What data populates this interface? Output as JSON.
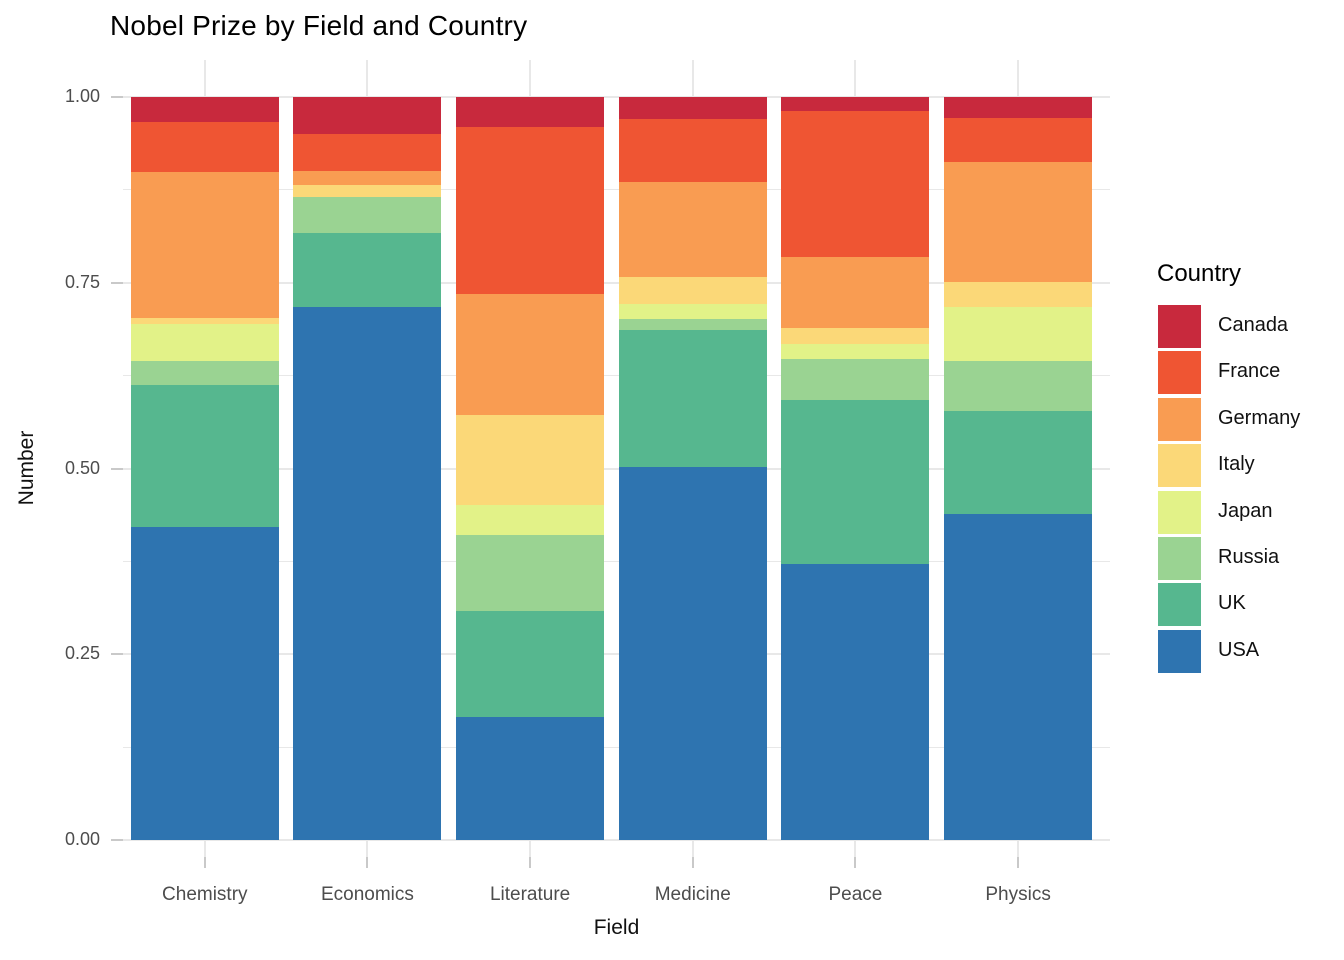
{
  "chart_data": {
    "type": "bar",
    "variant": "stacked-normalized",
    "title": "Nobel Prize by Field and Country",
    "xlabel": "Field",
    "ylabel": "Number",
    "ylim": [
      0,
      1
    ],
    "grid": true,
    "legend_position": "right",
    "legend_title": "Country",
    "y_major_ticks": [
      0,
      0.25,
      0.5,
      0.75,
      1
    ],
    "y_tick_labels": [
      "0.00",
      "0.25",
      "0.50",
      "0.75",
      "1.00"
    ],
    "y_minor_gridlines": [
      0.125,
      0.375,
      0.625,
      0.875
    ],
    "categories": [
      "Chemistry",
      "Economics",
      "Literature",
      "Medicine",
      "Peace",
      "Physics"
    ],
    "stack_order_bottom_to_top": [
      "USA",
      "UK",
      "Russia",
      "Japan",
      "Italy",
      "Germany",
      "France",
      "Canada"
    ],
    "series": [
      {
        "name": "Canada",
        "color": "#c8293d",
        "values": [
          0.033,
          0.05,
          0.04,
          0.029,
          0.019,
          0.028
        ]
      },
      {
        "name": "France",
        "color": "#ef5533",
        "values": [
          0.068,
          0.049,
          0.225,
          0.085,
          0.196,
          0.06
        ]
      },
      {
        "name": "Germany",
        "color": "#f99c52",
        "values": [
          0.197,
          0.019,
          0.163,
          0.128,
          0.096,
          0.161
        ]
      },
      {
        "name": "Italy",
        "color": "#fbd878",
        "values": [
          0.008,
          0.017,
          0.121,
          0.036,
          0.021,
          0.034
        ]
      },
      {
        "name": "Japan",
        "color": "#e2f288",
        "values": [
          0.049,
          0.0,
          0.04,
          0.021,
          0.02,
          0.072
        ]
      },
      {
        "name": "Russia",
        "color": "#9ad392",
        "values": [
          0.032,
          0.048,
          0.103,
          0.015,
          0.056,
          0.068
        ]
      },
      {
        "name": "UK",
        "color": "#56b78f",
        "values": [
          0.192,
          0.1,
          0.142,
          0.184,
          0.221,
          0.138
        ]
      },
      {
        "name": "USA",
        "color": "#2e74b0",
        "values": [
          0.421,
          0.717,
          0.166,
          0.502,
          0.371,
          0.439
        ]
      }
    ]
  }
}
